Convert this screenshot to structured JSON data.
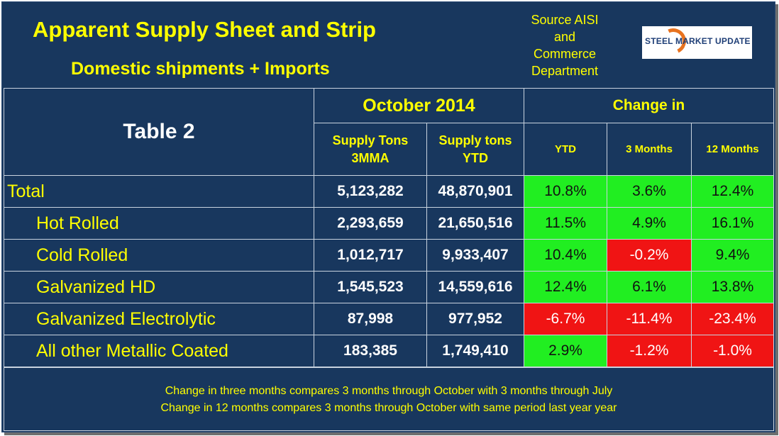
{
  "header": {
    "title": "Apparent Supply Sheet and Strip",
    "subtitle": "Domestic shipments + Imports",
    "source_lines": [
      "Source AISI",
      "and",
      "Commerce",
      "Department"
    ],
    "logo_text": "STEEL MARKET UPDATE"
  },
  "table": {
    "label": "Table 2",
    "period_header": "October 2014",
    "change_header": "Change in",
    "columns": [
      "Supply Tons 3MMA",
      "Supply tons YTD",
      "YTD",
      "3 Months",
      "12 Months"
    ],
    "rows": [
      {
        "name": "Total",
        "mma": "5,123,282",
        "ytd_tons": "48,870,901",
        "ytd": "10.8%",
        "m3": "3.6%",
        "m12": "12.4%",
        "ytd_pos": true,
        "m3_pos": true,
        "m12_pos": true
      },
      {
        "name": "Hot Rolled",
        "mma": "2,293,659",
        "ytd_tons": "21,650,516",
        "ytd": "11.5%",
        "m3": "4.9%",
        "m12": "16.1%",
        "ytd_pos": true,
        "m3_pos": true,
        "m12_pos": true
      },
      {
        "name": "Cold Rolled",
        "mma": "1,012,717",
        "ytd_tons": "9,933,407",
        "ytd": "10.4%",
        "m3": "-0.2%",
        "m12": "9.4%",
        "ytd_pos": true,
        "m3_pos": false,
        "m12_pos": true
      },
      {
        "name": "Galvanized HD",
        "mma": "1,545,523",
        "ytd_tons": "14,559,616",
        "ytd": "12.4%",
        "m3": "6.1%",
        "m12": "13.8%",
        "ytd_pos": true,
        "m3_pos": true,
        "m12_pos": true
      },
      {
        "name": "Galvanized Electrolytic",
        "mma": "87,998",
        "ytd_tons": "977,952",
        "ytd": "-6.7%",
        "m3": "-11.4%",
        "m12": "-23.4%",
        "ytd_pos": false,
        "m3_pos": false,
        "m12_pos": false
      },
      {
        "name": "All other Metallic Coated",
        "mma": "183,385",
        "ytd_tons": "1,749,410",
        "ytd": "2.9%",
        "m3": "-1.2%",
        "m12": "-1.0%",
        "ytd_pos": true,
        "m3_pos": false,
        "m12_pos": false
      }
    ]
  },
  "footer": {
    "note1": "Change in three months compares 3 months through October with 3 months through July",
    "note2": "Change in 12 months compares 3 months through October with same period last year year"
  },
  "colors": {
    "positive": "#21ee21",
    "negative": "#f01414",
    "background": "#18375e",
    "accent": "#ffff00"
  }
}
